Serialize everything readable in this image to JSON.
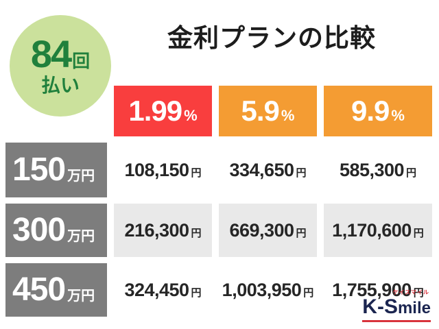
{
  "badge": {
    "number": "84",
    "number_unit": "回",
    "label": "払い"
  },
  "logo": {
    "prefix": "K-S",
    "suffix": "mile",
    "ruby": "ケイスマイル"
  },
  "chart_data": {
    "type": "table",
    "title": "金利プランの比較",
    "payment_count_badge": "84回払い",
    "rate_columns": [
      {
        "rate": "1.99",
        "unit": "%",
        "color": "#f93e3e"
      },
      {
        "rate": "5.9",
        "unit": "%",
        "color": "#f49c33"
      },
      {
        "rate": "9.9",
        "unit": "%",
        "color": "#f49c33"
      }
    ],
    "rows": [
      {
        "principal": "150",
        "principal_unit": "万円",
        "payments": [
          {
            "value": "108,150",
            "unit": "円"
          },
          {
            "value": "334,650",
            "unit": "円"
          },
          {
            "value": "585,300",
            "unit": "円"
          }
        ]
      },
      {
        "principal": "300",
        "principal_unit": "万円",
        "payments": [
          {
            "value": "216,300",
            "unit": "円"
          },
          {
            "value": "669,300",
            "unit": "円"
          },
          {
            "value": "1,170,600",
            "unit": "円"
          }
        ]
      },
      {
        "principal": "450",
        "principal_unit": "万円",
        "payments": [
          {
            "value": "324,450",
            "unit": "円"
          },
          {
            "value": "1,003,950",
            "unit": "円"
          },
          {
            "value": "1,755,900",
            "unit": "円"
          }
        ]
      }
    ]
  }
}
